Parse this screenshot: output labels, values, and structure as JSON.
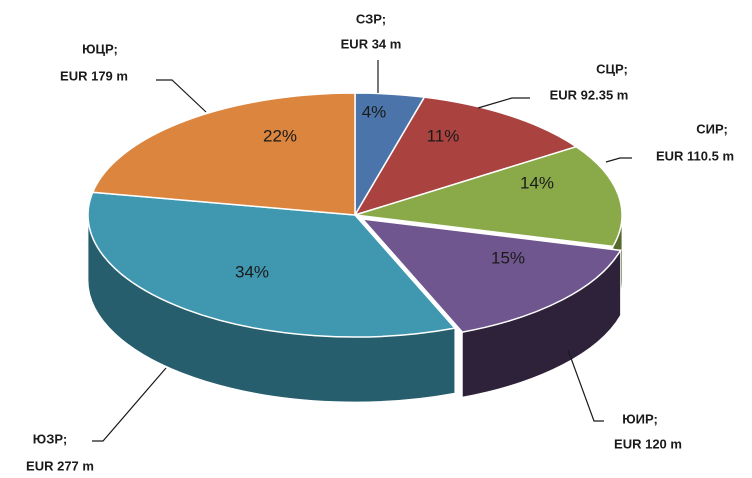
{
  "chart_data": {
    "type": "pie",
    "categories": [
      "СЗР;",
      "СЦР;",
      "СИР;",
      "ЮИР;",
      "ЮЗР;",
      "ЮЦР;"
    ],
    "values": [
      34,
      92.35,
      110.5,
      120,
      277,
      179
    ],
    "value_labels": [
      "EUR 34 m",
      "EUR 92.35 m",
      "EUR 110.5 m",
      "EUR 120 m",
      "EUR 277 m",
      "EUR 179 m"
    ],
    "percent_labels": [
      "4%",
      "11%",
      "14%",
      "15%",
      "34%",
      "22%"
    ],
    "colors": [
      "#4a74aa",
      "#aa4340",
      "#8aaa4a",
      "#70568f",
      "#3f98b0",
      "#db853e"
    ]
  }
}
